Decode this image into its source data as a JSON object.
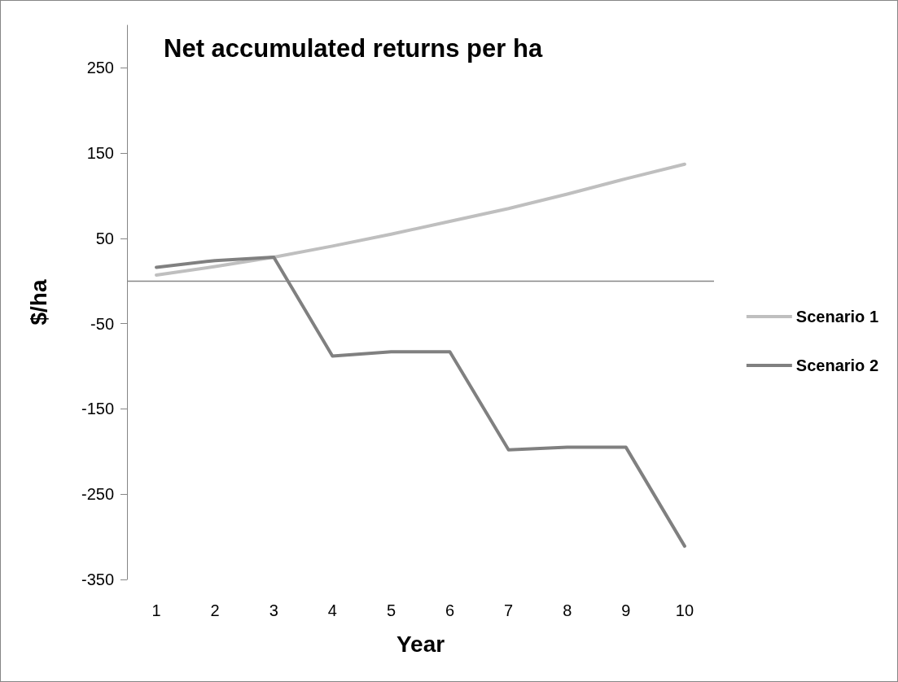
{
  "chart_data": {
    "type": "line",
    "title": "Net accumulated returns per ha",
    "xlabel": "Year",
    "ylabel": "$/ha",
    "categories": [
      "1",
      "2",
      "3",
      "4",
      "5",
      "6",
      "7",
      "8",
      "9",
      "10"
    ],
    "series": [
      {
        "name": "Scenario 1",
        "color": "#bfbfbf",
        "values": [
          7,
          17,
          28,
          41,
          55,
          70,
          85,
          102,
          120,
          137
        ]
      },
      {
        "name": "Scenario 2",
        "color": "#808080",
        "values": [
          16,
          24,
          28,
          -88,
          -83,
          -83,
          -198,
          -195,
          -195,
          -311
        ]
      }
    ],
    "ylim": [
      -350,
      300
    ],
    "yticks": [
      -350,
      -250,
      -150,
      -50,
      50,
      150,
      250
    ],
    "ref_lines": [
      {
        "axis": "y",
        "value": 0,
        "color": "#868686",
        "line_style": "solid"
      }
    ],
    "grid": false,
    "legend": "right",
    "marker": "none",
    "line_style": "solid"
  }
}
